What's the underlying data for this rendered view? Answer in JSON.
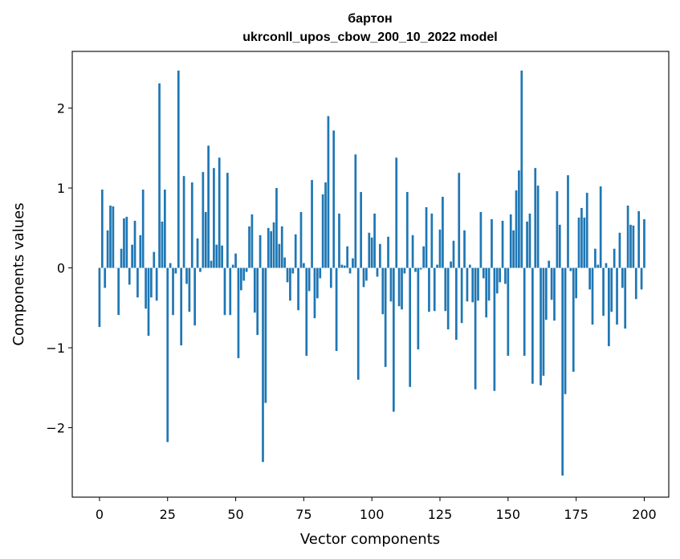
{
  "chart_data": {
    "type": "bar",
    "title": "бартон",
    "subtitle": "ukrconll_upos_cbow_200_10_2022 model",
    "xlabel": "Vector components",
    "ylabel": "Components values",
    "xlim": [
      -10,
      209
    ],
    "ylim": [
      -2.87,
      2.71
    ],
    "xticks": [
      0,
      25,
      50,
      75,
      100,
      125,
      150,
      175,
      200
    ],
    "yticks": [
      -2,
      -1,
      0,
      1,
      2
    ],
    "ytick_labels": [
      "−2",
      "−1",
      "0",
      "1",
      "2"
    ],
    "grid": false,
    "color": "#1f77b4",
    "values": [
      -0.74,
      0.98,
      -0.25,
      0.47,
      0.78,
      0.77,
      0.0,
      -0.59,
      0.24,
      0.62,
      0.64,
      -0.21,
      0.29,
      0.59,
      -0.37,
      0.41,
      0.98,
      -0.51,
      -0.85,
      -0.37,
      0.2,
      -0.41,
      2.31,
      0.58,
      0.98,
      -2.18,
      0.06,
      -0.59,
      -0.07,
      2.47,
      -0.97,
      1.15,
      -0.2,
      -0.55,
      1.07,
      -0.72,
      0.37,
      -0.05,
      1.2,
      0.7,
      1.53,
      0.09,
      1.25,
      0.29,
      1.38,
      0.28,
      -0.59,
      1.19,
      -0.59,
      0.04,
      0.18,
      -1.13,
      -0.28,
      -0.16,
      -0.05,
      0.52,
      0.67,
      -0.56,
      -0.84,
      0.41,
      -2.43,
      -1.69,
      0.5,
      0.46,
      0.57,
      1.0,
      0.3,
      0.52,
      0.13,
      -0.18,
      -0.41,
      -0.07,
      0.42,
      -0.53,
      0.7,
      0.06,
      -1.1,
      -0.29,
      1.1,
      -0.63,
      -0.38,
      -0.13,
      0.92,
      1.07,
      1.9,
      -0.25,
      1.72,
      -1.04,
      0.68,
      0.04,
      0.03,
      0.27,
      -0.07,
      0.12,
      1.42,
      -1.4,
      0.95,
      -0.24,
      -0.16,
      0.44,
      0.38,
      0.68,
      -0.11,
      0.3,
      -0.58,
      -1.24,
      0.39,
      -0.42,
      -1.8,
      1.38,
      -0.48,
      -0.52,
      -0.07,
      0.95,
      -1.49,
      0.41,
      -0.05,
      -1.02,
      -0.02,
      0.27,
      0.76,
      -0.55,
      0.68,
      -0.54,
      0.04,
      0.48,
      0.89,
      -0.54,
      -0.77,
      0.08,
      0.34,
      -0.9,
      1.19,
      -0.69,
      0.47,
      -0.42,
      0.04,
      -0.43,
      -1.52,
      -0.41,
      0.7,
      -0.13,
      -0.62,
      -0.41,
      0.61,
      -1.54,
      -0.32,
      -0.18,
      0.59,
      -0.2,
      -1.1,
      0.67,
      0.47,
      0.97,
      1.22,
      2.47,
      -1.1,
      0.58,
      0.68,
      -1.45,
      1.25,
      1.03,
      -1.47,
      -1.35,
      -0.65,
      0.09,
      -0.4,
      -0.66,
      0.96,
      0.54,
      -2.6,
      -1.58,
      1.16,
      -0.04,
      -1.3,
      -0.38,
      0.63,
      0.75,
      0.63,
      0.94,
      -0.27,
      -0.71,
      0.24,
      0.04,
      1.02,
      -0.6,
      0.06,
      -0.98,
      -0.55,
      0.24,
      -0.71,
      0.44,
      -0.25,
      -0.76,
      0.78,
      0.54,
      0.53,
      -0.39,
      0.71,
      -0.27,
      0.61
    ]
  }
}
